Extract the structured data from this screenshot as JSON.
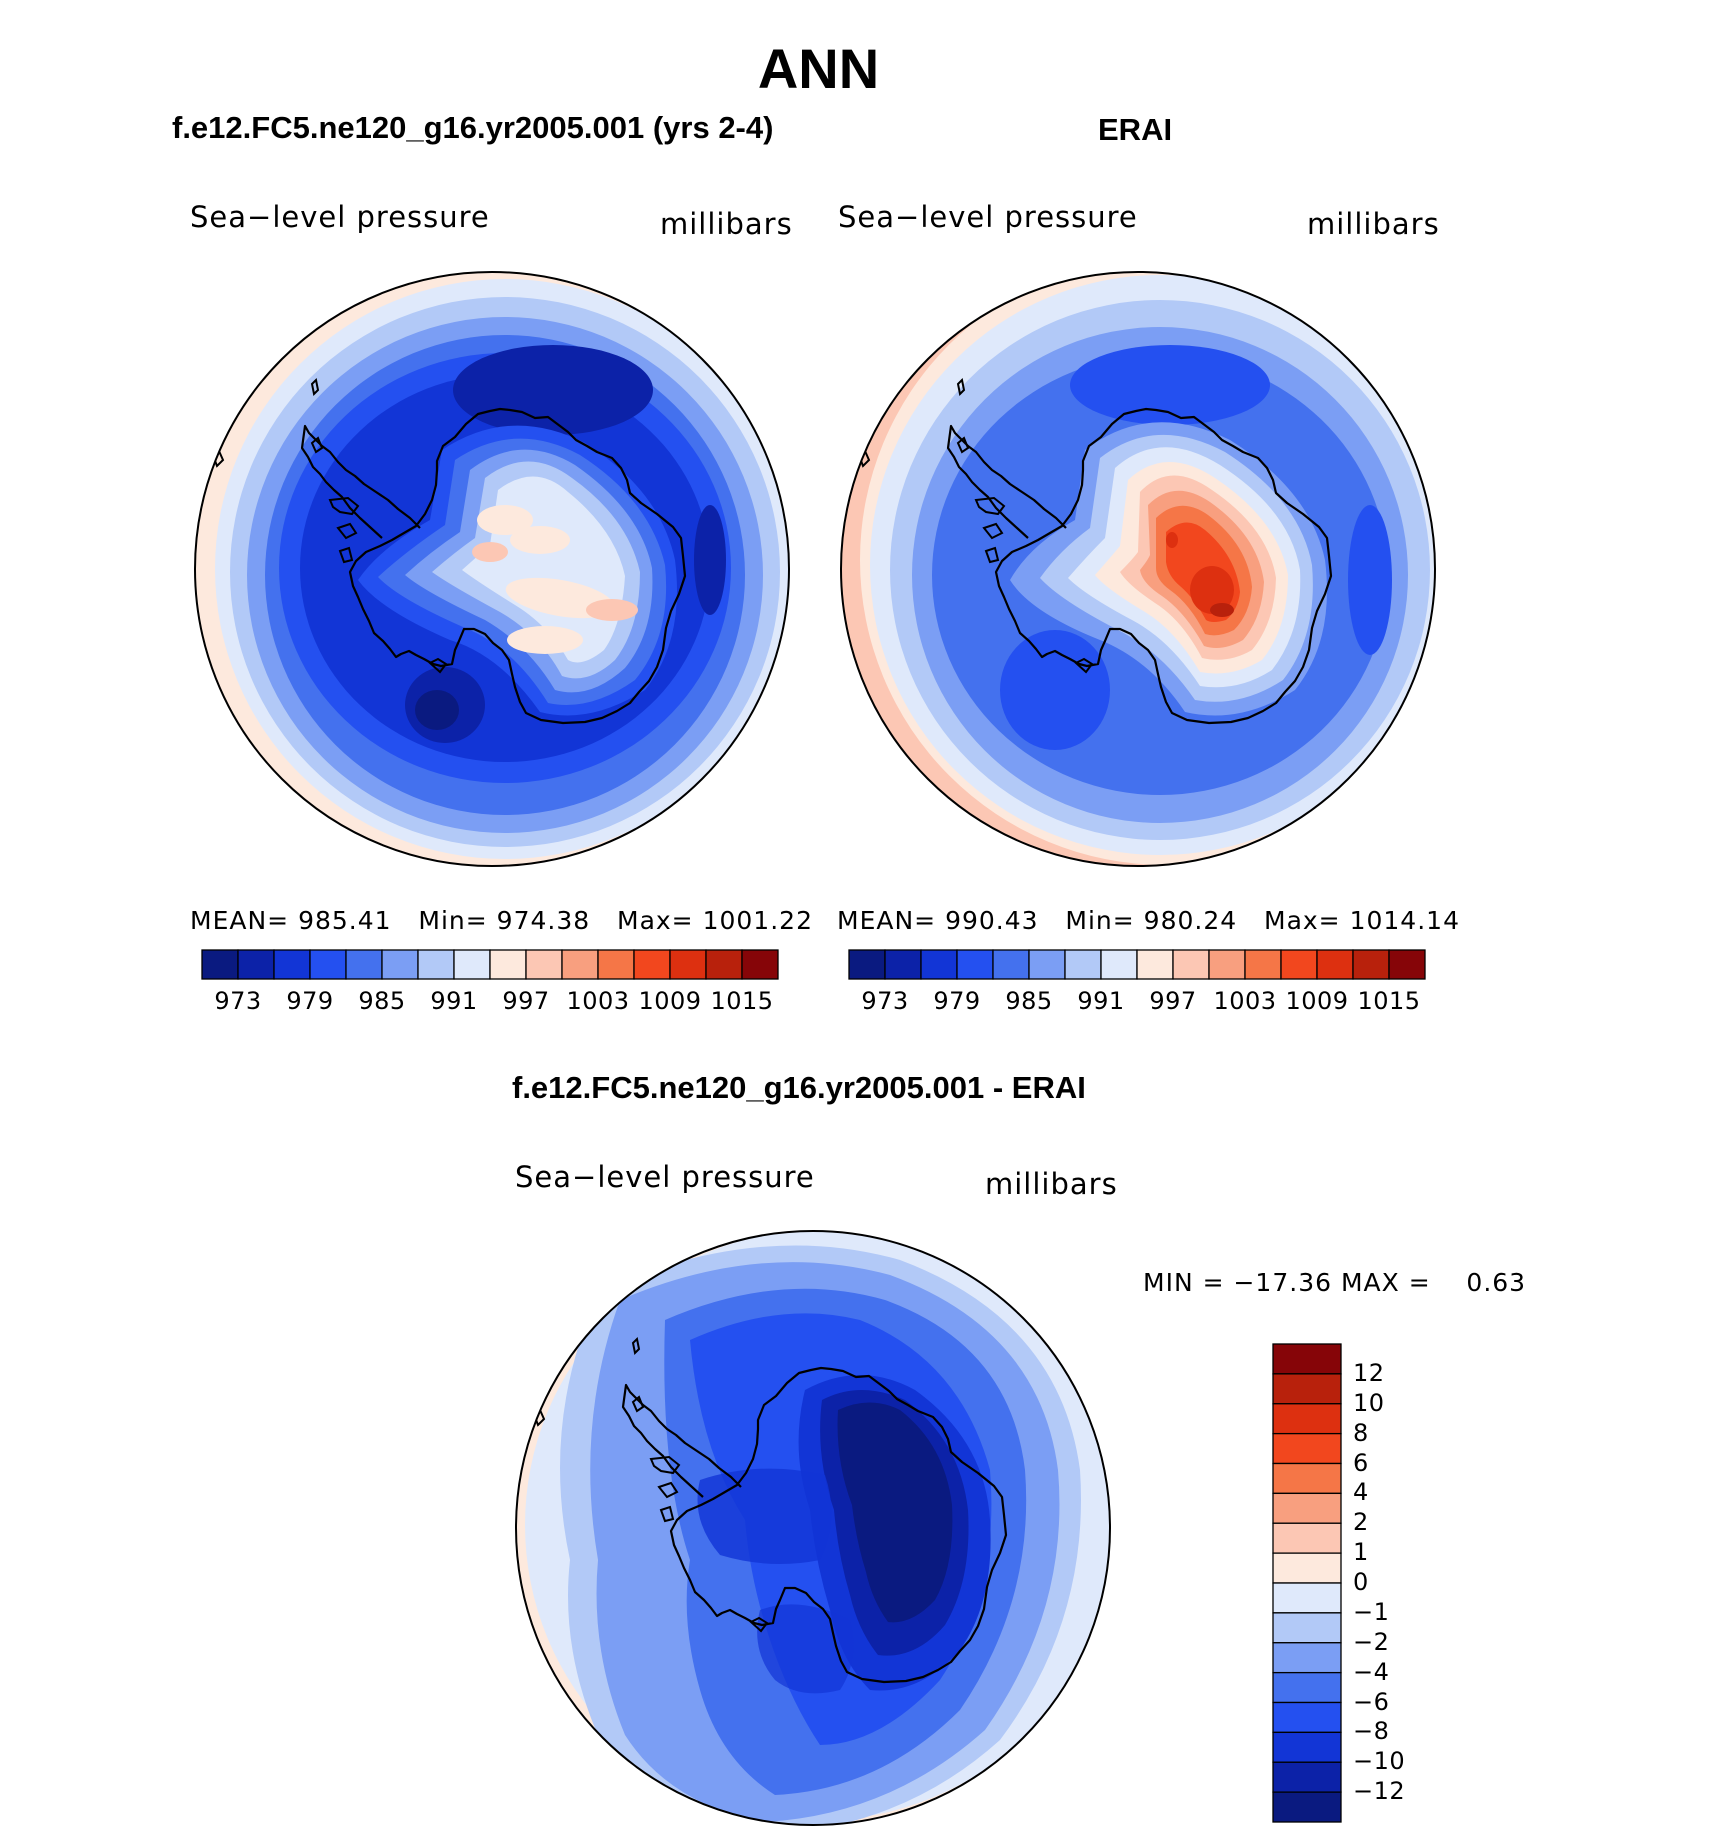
{
  "title": "ANN",
  "colors": {
    "abs_scale": [
      "#0a1a80",
      "#0c22a8",
      "#1235d6",
      "#2450f0",
      "#4471ee",
      "#7b9ef4",
      "#b2c9f7",
      "#dfe9fb",
      "#fde9dd",
      "#fcc7b4",
      "#f89f7f",
      "#f57647",
      "#f2471e",
      "#dd3010",
      "#b8210c",
      "#860508"
    ],
    "diff_scale": [
      "#0a1a80",
      "#0c22a8",
      "#1235d6",
      "#2450f0",
      "#4471ee",
      "#7b9ef4",
      "#b2c9f7",
      "#dfe9fb",
      "#fde9dd",
      "#fcc7b4",
      "#f89f7f",
      "#f57647",
      "#f2471e",
      "#dd3010",
      "#b8210c",
      "#860508"
    ]
  },
  "panels": [
    {
      "id": "model",
      "heading": "f.e12.FC5.ne120_g16.yr2005.001 (yrs 2-4)",
      "left_label": "Sea−level pressure",
      "right_label": "millibars",
      "stats": {
        "mean_label": "MEAN=",
        "mean": "985.41",
        "min_label": "Min=",
        "min": "974.38",
        "max_label": "Max=",
        "max": "1001.22"
      },
      "colorbar_ticks": [
        "973",
        "979",
        "985",
        "991",
        "997",
        "1003",
        "1009",
        "1015"
      ]
    },
    {
      "id": "obs",
      "heading": "ERAI",
      "left_label": "Sea−level pressure",
      "right_label": "millibars",
      "stats": {
        "mean_label": "MEAN=",
        "mean": "990.43",
        "min_label": "Min=",
        "min": "980.24",
        "max_label": "Max=",
        "max": "1014.14"
      },
      "colorbar_ticks": [
        "973",
        "979",
        "985",
        "991",
        "997",
        "1003",
        "1009",
        "1015"
      ]
    },
    {
      "id": "diff",
      "heading": "f.e12.FC5.ne120_g16.yr2005.001 - ERAI",
      "left_label": "Sea−level pressure",
      "right_label": "millibars",
      "stats_text": "MIN = −17.36 MAX =    0.63",
      "colorbar_ticks": [
        "12",
        "10",
        "8",
        "6",
        "4",
        "2",
        "1",
        "0",
        "−1",
        "−2",
        "−4",
        "−6",
        "−8",
        "−10",
        "−12"
      ]
    }
  ]
}
